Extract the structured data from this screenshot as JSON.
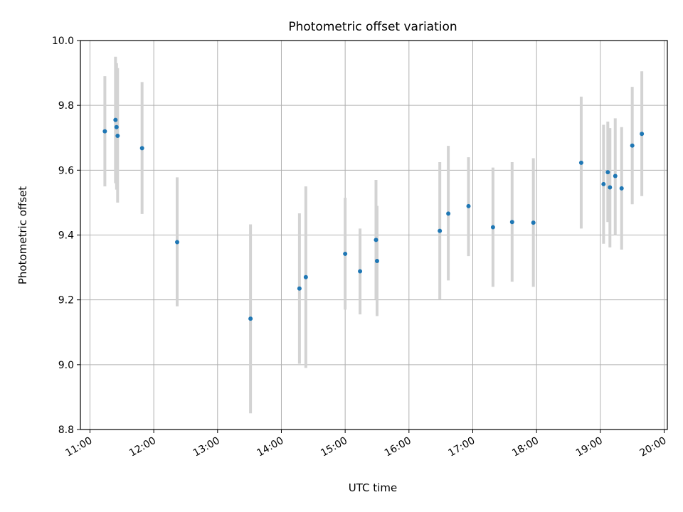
{
  "chart_data": {
    "type": "scatter",
    "title": "Photometric offset variation",
    "xlabel": "UTC time",
    "ylabel": "Photometric offset",
    "xlim": [
      "10:51",
      "20:03"
    ],
    "ylim": [
      8.8,
      10.0
    ],
    "x_ticks": [
      "11:00",
      "12:00",
      "13:00",
      "14:00",
      "15:00",
      "16:00",
      "17:00",
      "18:00",
      "19:00",
      "20:00"
    ],
    "y_ticks": [
      "8.8",
      "9.0",
      "9.2",
      "9.4",
      "9.6",
      "9.8",
      "10.0"
    ],
    "grid": true,
    "marker_color": "#1f77b4",
    "errorbar_color": "#d3d3d3",
    "points": [
      {
        "time": "11:14",
        "y": 9.72,
        "ylo": 9.55,
        "yhi": 9.89
      },
      {
        "time": "11:24",
        "y": 9.755,
        "ylo": 9.56,
        "yhi": 9.95
      },
      {
        "time": "11:25",
        "y": 9.733,
        "ylo": 9.54,
        "yhi": 9.93
      },
      {
        "time": "11:26",
        "y": 9.706,
        "ylo": 9.5,
        "yhi": 9.915
      },
      {
        "time": "11:49",
        "y": 9.668,
        "ylo": 9.465,
        "yhi": 9.872
      },
      {
        "time": "12:22",
        "y": 9.378,
        "ylo": 9.18,
        "yhi": 9.578
      },
      {
        "time": "13:31",
        "y": 9.142,
        "ylo": 8.85,
        "yhi": 9.433
      },
      {
        "time": "14:17",
        "y": 9.235,
        "ylo": 9.003,
        "yhi": 9.467
      },
      {
        "time": "14:23",
        "y": 9.27,
        "ylo": 8.99,
        "yhi": 9.55
      },
      {
        "time": "15:00",
        "y": 9.342,
        "ylo": 9.17,
        "yhi": 9.515
      },
      {
        "time": "15:14",
        "y": 9.288,
        "ylo": 9.155,
        "yhi": 9.42
      },
      {
        "time": "15:29",
        "y": 9.385,
        "ylo": 9.2,
        "yhi": 9.57
      },
      {
        "time": "15:30",
        "y": 9.32,
        "ylo": 9.15,
        "yhi": 9.49
      },
      {
        "time": "16:29",
        "y": 9.413,
        "ylo": 9.2,
        "yhi": 9.625
      },
      {
        "time": "16:37",
        "y": 9.466,
        "ylo": 9.26,
        "yhi": 9.675
      },
      {
        "time": "16:56",
        "y": 9.489,
        "ylo": 9.335,
        "yhi": 9.64
      },
      {
        "time": "17:19",
        "y": 9.424,
        "ylo": 9.24,
        "yhi": 9.608
      },
      {
        "time": "17:37",
        "y": 9.44,
        "ylo": 9.256,
        "yhi": 9.625
      },
      {
        "time": "17:57",
        "y": 9.438,
        "ylo": 9.24,
        "yhi": 9.637
      },
      {
        "time": "18:42",
        "y": 9.623,
        "ylo": 9.42,
        "yhi": 9.827
      },
      {
        "time": "19:03",
        "y": 9.557,
        "ylo": 9.373,
        "yhi": 9.74
      },
      {
        "time": "19:07",
        "y": 9.594,
        "ylo": 9.44,
        "yhi": 9.75
      },
      {
        "time": "19:09",
        "y": 9.547,
        "ylo": 9.362,
        "yhi": 9.73
      },
      {
        "time": "19:14",
        "y": 9.582,
        "ylo": 9.4,
        "yhi": 9.76
      },
      {
        "time": "19:20",
        "y": 9.544,
        "ylo": 9.355,
        "yhi": 9.733
      },
      {
        "time": "19:30",
        "y": 9.676,
        "ylo": 9.495,
        "yhi": 9.857
      },
      {
        "time": "19:39",
        "y": 9.712,
        "ylo": 9.52,
        "yhi": 9.905
      }
    ]
  }
}
